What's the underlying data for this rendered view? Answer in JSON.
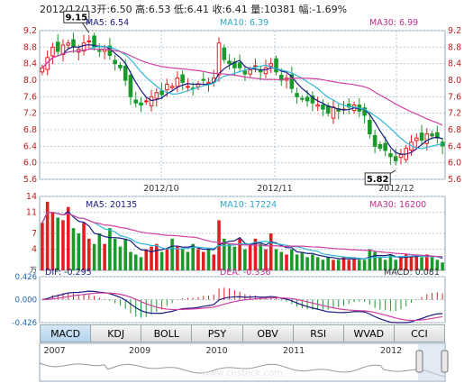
{
  "header": {
    "date": "2012/12/13",
    "open_label": "开:",
    "open": "6.50",
    "high_label": "高:",
    "high": "6.53",
    "low_label": "低:",
    "low": "6.41",
    "close_label": "收:",
    "close": "6.41",
    "volume_label": "量:",
    "volume": "10381",
    "change_label": "幅:",
    "change": "-1.69%"
  },
  "price_panel": {
    "ma5": "MA5: 6.54",
    "ma10": "MA10: 6.39",
    "ma30": "MA30: 6.99",
    "y_ticks": [
      "9.2",
      "8.8",
      "8.4",
      "8.0",
      "7.6",
      "7.2",
      "6.8",
      "6.4",
      "6.0",
      "5.6"
    ],
    "x_labels": [
      "2012/10",
      "2012/11",
      "2012/12"
    ],
    "high_marker": "9.15",
    "low_marker": "5.82"
  },
  "volume_panel": {
    "ma5": "MA5: 20135",
    "ma10": "MA10: 17224",
    "ma30": "MA30: 16200",
    "y_ticks": [
      "14",
      "11",
      "7",
      "4"
    ],
    "unit": "万"
  },
  "macd_panel": {
    "dif": "DIF: -0.295",
    "dea": "DEA: -0.336",
    "macd": "MACD: 0.081",
    "y_ticks": [
      "0.426",
      "0.000",
      "-0.426"
    ]
  },
  "tabs": [
    "MACD",
    "KDJ",
    "BOLL",
    "PSY",
    "OBV",
    "RSI",
    "WVAD",
    "CCI"
  ],
  "active_tab": "MACD",
  "overview": {
    "year_labels": [
      "2007",
      "2009",
      "2010",
      "2011",
      "2012"
    ],
    "watermark": "www.cnstock.com"
  },
  "colors": {
    "up": "#e02020",
    "down": "#1a9a2a",
    "ma5": "#1a1a80",
    "ma10": "#30b8d8",
    "ma30": "#d040a0",
    "grid": "#b8c8d8"
  },
  "chart_data": {
    "type": "candlestick",
    "date": "2012/12/13",
    "ohlc": {
      "open": 6.5,
      "high": 6.53,
      "low": 6.41,
      "close": 6.41
    },
    "volume": 10381,
    "change_pct": -1.69,
    "ma": {
      "MA5": 6.54,
      "MA10": 6.39,
      "MA30": 6.99
    },
    "volume_ma": {
      "MA5": 20135,
      "MA10": 17224,
      "MA30": 16200
    },
    "macd": {
      "DIF": -0.295,
      "DEA": -0.336,
      "MACD": 0.081
    },
    "price_ylim": [
      5.6,
      9.2
    ],
    "volume_ylim": [
      0,
      14
    ],
    "macd_ylim": [
      -0.426,
      0.426
    ],
    "period_high": 9.15,
    "period_low": 5.82,
    "closes": [
      8.3,
      8.55,
      8.8,
      8.7,
      8.85,
      8.9,
      8.8,
      8.75,
      8.9,
      8.95,
      8.8,
      8.7,
      8.75,
      8.6,
      8.4,
      8.3,
      8.0,
      7.6,
      7.45,
      7.4,
      7.5,
      7.6,
      7.7,
      7.65,
      7.9,
      7.85,
      8.05,
      7.95,
      7.85,
      7.8,
      7.9,
      8.0,
      7.95,
      8.05,
      8.9,
      8.5,
      8.4,
      8.3,
      8.3,
      8.15,
      8.25,
      8.35,
      8.2,
      8.3,
      8.4,
      8.2,
      8.0,
      8.05,
      7.8,
      7.6,
      7.55,
      7.5,
      7.45,
      7.4,
      7.3,
      7.2,
      7.35,
      7.25,
      7.3,
      7.35,
      7.4,
      7.25,
      7.15,
      6.7,
      6.4,
      6.35,
      6.3,
      6.15,
      6.05,
      6.2,
      6.35,
      6.5,
      6.6,
      6.55,
      6.7,
      6.65,
      6.6,
      6.41
    ],
    "volumes": [
      9,
      13,
      11,
      10,
      9.5,
      12,
      8,
      7,
      9,
      6,
      5,
      7,
      5,
      8,
      6,
      4.5,
      6,
      3.5,
      3,
      2.5,
      4,
      4.5,
      5,
      3.5,
      4,
      6,
      4.5,
      4,
      3.5,
      5,
      4,
      3.5,
      4,
      3,
      9.5,
      6,
      5,
      4.5,
      6,
      4,
      5,
      6,
      5,
      4,
      7,
      4,
      3.5,
      3,
      4,
      3,
      3.5,
      2.5,
      3,
      2.5,
      2,
      2.5,
      2,
      2,
      2.5,
      2,
      2.5,
      2,
      2,
      4,
      3.5,
      2.5,
      2,
      3,
      2,
      2.5,
      3,
      2.5,
      3,
      2.5,
      3,
      2.5,
      2,
      1.5
    ]
  }
}
